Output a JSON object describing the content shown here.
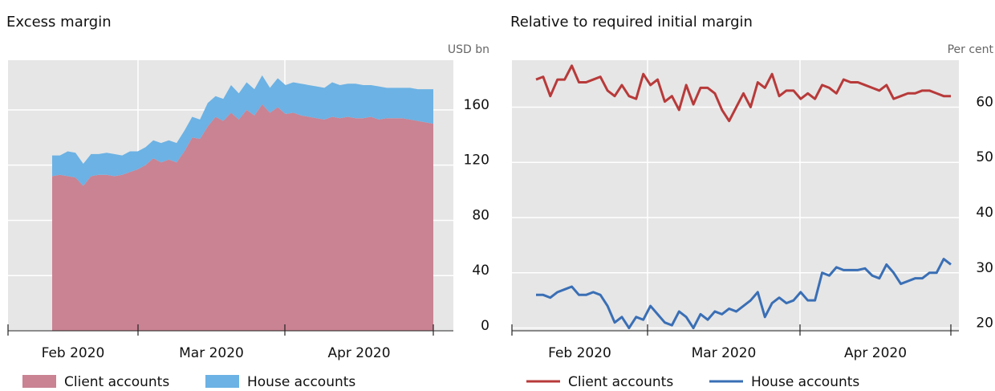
{
  "chart_data": [
    {
      "type": "area",
      "stacked": true,
      "title": "Excess margin",
      "unit": "USD bn",
      "x_labels": [
        "Feb 2020",
        "Mar 2020",
        "Apr 2020"
      ],
      "ylim": [
        0,
        196
      ],
      "yticks": [
        0,
        40,
        80,
        120,
        160
      ],
      "grid": true,
      "series": [
        {
          "name": "Client accounts",
          "color": "#c98393",
          "values": [
            112,
            113,
            112,
            111,
            105,
            112,
            113,
            113,
            112,
            113,
            115,
            117,
            120,
            125,
            122,
            124,
            122,
            130,
            140,
            139,
            148,
            155,
            152,
            158,
            153,
            160,
            156,
            164,
            158,
            162,
            157,
            158,
            156,
            155,
            154,
            153,
            155,
            154,
            155,
            154,
            154,
            155,
            153,
            154,
            154,
            154,
            153,
            152,
            151,
            150
          ]
        },
        {
          "name": "House accounts",
          "color": "#6cb2e4",
          "values": [
            15,
            14,
            18,
            18,
            16,
            16,
            15,
            16,
            16,
            14,
            15,
            13,
            13,
            13,
            14,
            14,
            14,
            15,
            15,
            14,
            17,
            15,
            16,
            20,
            19,
            20,
            19,
            21,
            18,
            21,
            21,
            22,
            23,
            23,
            23,
            23,
            25,
            24,
            24,
            25,
            24,
            23,
            24,
            22,
            22,
            22,
            23,
            23,
            24,
            25
          ]
        }
      ]
    },
    {
      "type": "line",
      "title": "Relative to required initial margin",
      "unit": "Per cent",
      "x_labels": [
        "Feb 2020",
        "Mar 2020",
        "Apr 2020"
      ],
      "ylim": [
        19.5,
        68.5
      ],
      "yticks": [
        20,
        30,
        40,
        50,
        60
      ],
      "grid": true,
      "series": [
        {
          "name": "Client accounts",
          "color": "#b83a3a",
          "values": [
            65,
            65.5,
            62,
            65,
            65,
            67.5,
            64.5,
            64.5,
            65,
            65.5,
            63,
            62,
            64,
            62,
            61.5,
            66,
            64,
            65,
            61,
            62,
            59.5,
            64,
            60.5,
            63.5,
            63.5,
            62.5,
            59.5,
            57.5,
            60,
            62.5,
            60,
            64.5,
            63.5,
            66,
            62,
            63,
            63,
            61.5,
            62.5,
            61.5,
            64,
            63.5,
            62.5,
            65,
            64.5,
            64.5,
            64,
            63.5,
            63,
            64,
            61.5,
            62,
            62.5,
            62.5,
            63,
            63,
            62.5,
            62,
            62
          ]
        },
        {
          "name": "House accounts",
          "color": "#3a6fb5",
          "values": [
            26,
            26,
            25.5,
            26.5,
            27,
            27.5,
            26,
            26,
            26.5,
            26,
            24,
            21,
            22,
            20,
            22,
            21.5,
            24,
            22.5,
            21,
            20.5,
            23,
            22,
            20,
            22.5,
            21.5,
            23,
            22.5,
            23.5,
            23,
            24,
            25,
            26.5,
            22,
            24.5,
            25.5,
            24.5,
            25,
            26.5,
            25,
            25,
            30,
            29.5,
            31,
            30.5,
            30.5,
            30.5,
            30.8,
            29.5,
            29,
            31.5,
            30,
            28,
            28.5,
            29,
            29,
            30,
            30,
            32.5,
            31.5
          ]
        }
      ]
    }
  ]
}
